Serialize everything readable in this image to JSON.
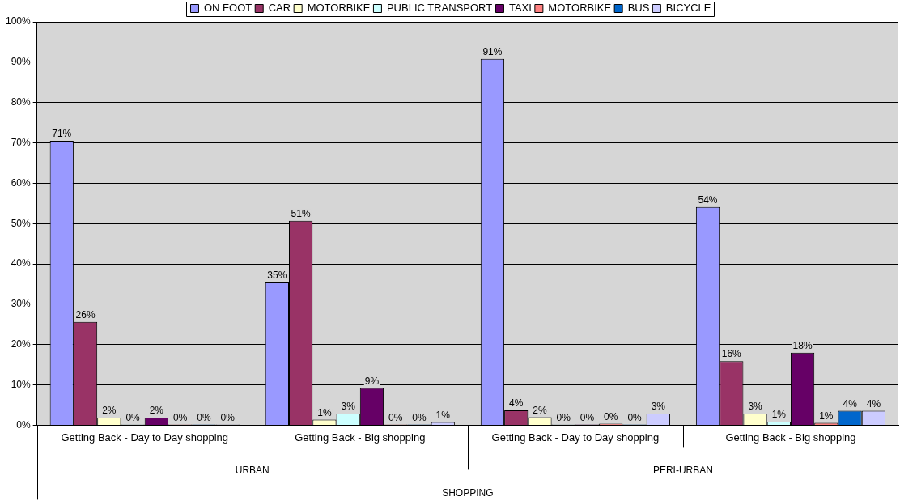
{
  "chart_data": {
    "type": "bar",
    "categories": [
      "Getting Back - Day to Day shopping",
      "Getting Back - Big shopping",
      "Getting Back - Day to Day shopping",
      "Getting Back - Big shopping"
    ],
    "xlabel": "SHOPPING",
    "annotations": [
      "URBAN",
      "PERI-URBAN"
    ],
    "series": [
      {
        "name": "ON FOOT",
        "color": "#9999ff",
        "values": [
          70.5,
          35.4,
          90.8,
          54.1
        ],
        "value_labels": [
          "71%",
          "35%",
          "91%",
          "54%"
        ]
      },
      {
        "name": "CAR",
        "color": "#993366",
        "values": [
          25.6,
          50.7,
          3.7,
          15.9
        ],
        "value_labels": [
          "26%",
          "51%",
          "4%",
          "16%"
        ]
      },
      {
        "name": "MOTORBIKE",
        "color": "#ffffcc",
        "values": [
          1.9,
          1.4,
          2.0,
          2.9
        ],
        "value_labels": [
          "2%",
          "1%",
          "2%",
          "3%"
        ]
      },
      {
        "name": "PUBLIC TRANSPORT",
        "color": "#ccffff",
        "values": [
          0,
          2.9,
          0,
          0.9
        ],
        "value_labels": [
          "0%",
          "3%",
          "0%",
          "1%"
        ]
      },
      {
        "name": "TAXI",
        "color": "#660066",
        "values": [
          1.9,
          9.2,
          0,
          18.0
        ],
        "value_labels": [
          "2%",
          "9%",
          "0%",
          "18%"
        ]
      },
      {
        "name": "MOTORBIKE",
        "color": "#ff8080",
        "values": [
          0,
          0,
          0.4,
          0.6
        ],
        "value_labels": [
          "0%",
          "0%",
          "0%",
          "1%"
        ]
      },
      {
        "name": "BUS",
        "color": "#0066cc",
        "values": [
          0,
          0,
          0,
          3.6
        ],
        "value_labels": [
          "0%",
          "0%",
          "0%",
          "4%"
        ]
      },
      {
        "name": "BICYCLE",
        "color": "#ccccff",
        "values": [
          0,
          0.8,
          2.9,
          3.6
        ],
        "value_labels": [
          "0%",
          "1%",
          "3%",
          "4%"
        ]
      }
    ],
    "ylim": [
      0,
      100
    ],
    "yticks": [
      {
        "value": 0,
        "label": "0%"
      },
      {
        "value": 10,
        "label": "10%"
      },
      {
        "value": 20,
        "label": "20%"
      },
      {
        "value": 30,
        "label": "30%"
      },
      {
        "value": 40,
        "label": "40%"
      },
      {
        "value": 50,
        "label": "50%"
      },
      {
        "value": 60,
        "label": "60%"
      },
      {
        "value": 70,
        "label": "70%"
      },
      {
        "value": 80,
        "label": "80%"
      },
      {
        "value": 90,
        "label": "90%"
      },
      {
        "value": 100,
        "label": "100%"
      }
    ],
    "grid": "y",
    "legend": "top"
  }
}
